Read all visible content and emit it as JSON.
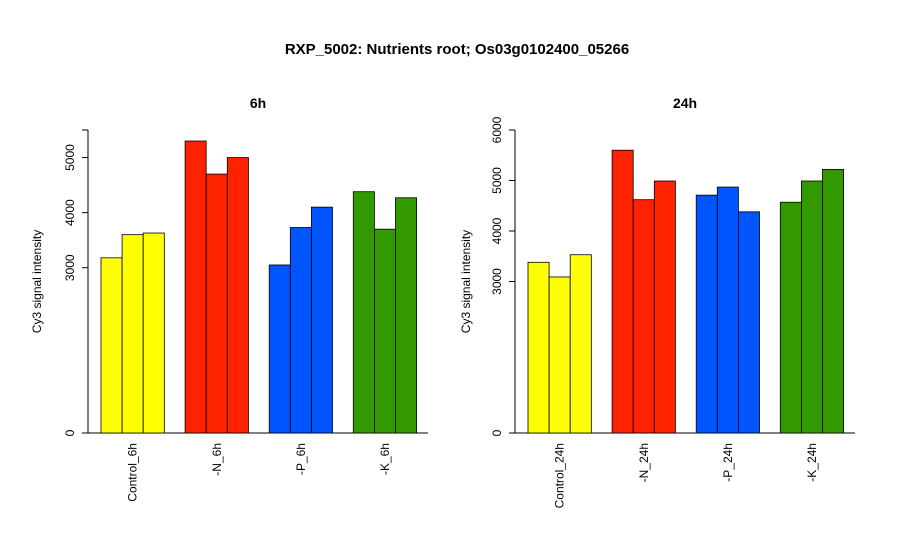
{
  "title": "RXP_5002: Nutrients root; Os03g0102400_05266",
  "colors": {
    "control": "#ffff00",
    "N": "#ff2200",
    "P": "#0055ff",
    "K": "#339900"
  },
  "chart_data": [
    {
      "type": "bar",
      "title": "6h",
      "ylabel": "Cy3 signal intensity",
      "ylim": [
        0,
        5500
      ],
      "yticks": [
        0,
        3000,
        4000,
        5000
      ],
      "categories": [
        "Control_6h",
        "-N_6h",
        "-P_6h",
        "-K_6h"
      ],
      "group_colors": [
        "#ffff00",
        "#ff2200",
        "#0055ff",
        "#339900"
      ],
      "values": [
        [
          3180,
          3600,
          3630
        ],
        [
          5300,
          4700,
          5000
        ],
        [
          3050,
          3730,
          4100
        ],
        [
          4380,
          3700,
          4270
        ]
      ]
    },
    {
      "type": "bar",
      "title": "24h",
      "ylabel": "Cy3 signal intensity",
      "ylim": [
        0,
        6000
      ],
      "yticks": [
        0,
        3000,
        4000,
        5000,
        6000
      ],
      "categories": [
        "Control_24h",
        "-N_24h",
        "-P_24h",
        "-K_24h"
      ],
      "group_colors": [
        "#ffff00",
        "#ff2200",
        "#0055ff",
        "#339900"
      ],
      "values": [
        [
          3380,
          3090,
          3530
        ],
        [
          5600,
          4620,
          4990
        ],
        [
          4710,
          4870,
          4380
        ],
        [
          4570,
          4990,
          5220
        ]
      ]
    }
  ]
}
